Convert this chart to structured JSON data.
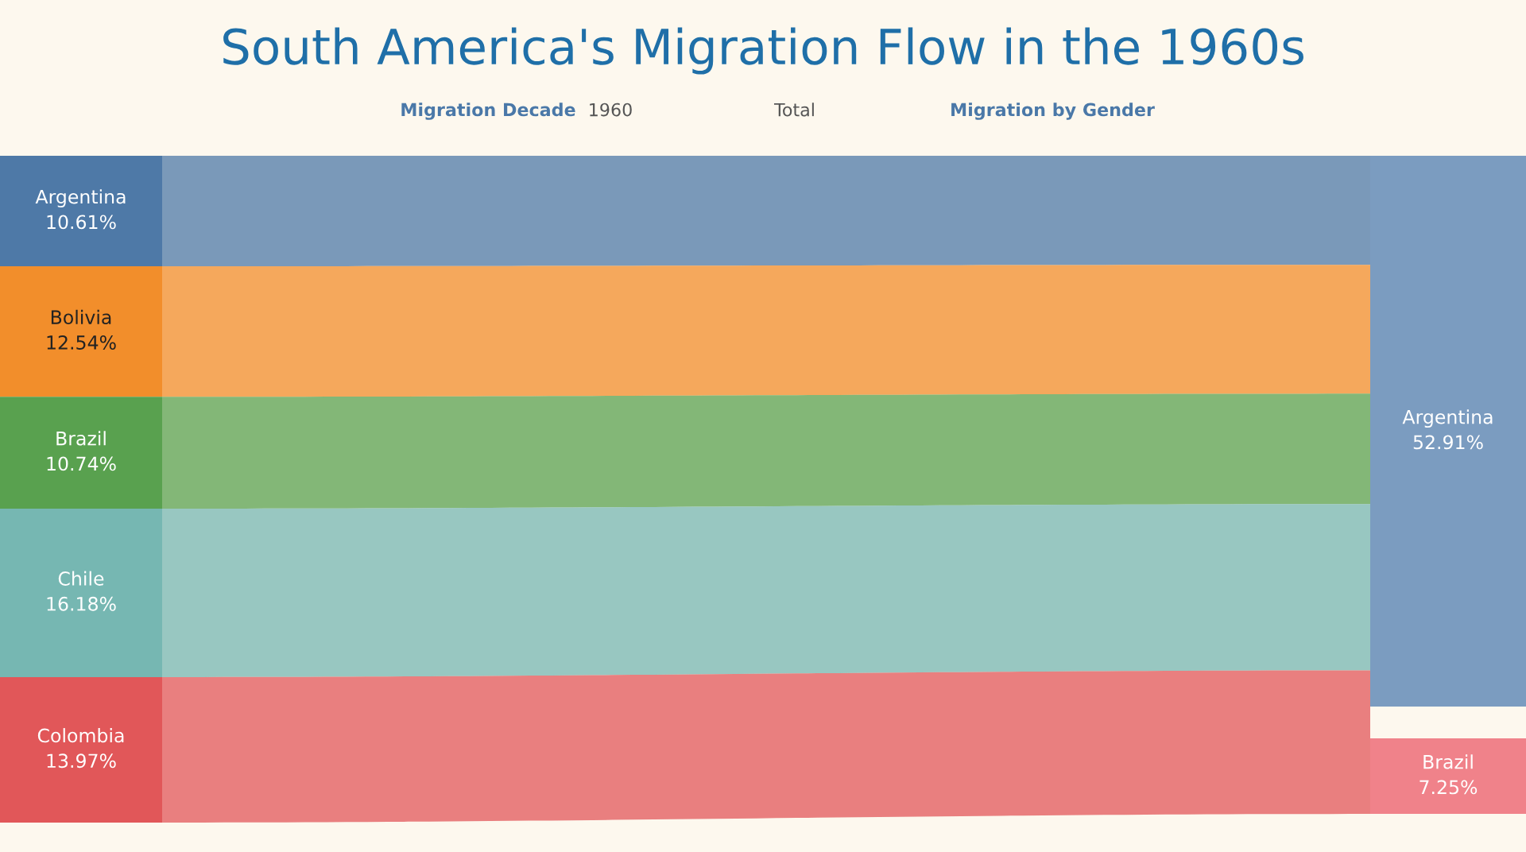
{
  "chart_data": [
    {
      "type": "other",
      "title": "South America's Migration Flow in the 1960s",
      "annotations": [
        "Migration Decade",
        "1960",
        "Total",
        "Migration by Gender"
      ],
      "categories": [
        "Argentina",
        "Bolivia",
        "Brazil",
        "Chile",
        "Colombia"
      ],
      "values": [
        10.61,
        12.54,
        10.74,
        16.18,
        13.97
      ],
      "value_labels": [
        "10.61%",
        "12.54%",
        "10.74%",
        "16.18%",
        "13.97%"
      ],
      "colors": [
        "#4e79a7",
        "#f28e2b",
        "#59a14f",
        "#76b7b2",
        "#e15759"
      ]
    },
    {
      "type": "other",
      "categories": [
        "Argentina",
        "Brazil"
      ],
      "values": [
        52.91,
        7.25
      ],
      "value_labels": [
        "52.91%",
        "7.25%"
      ],
      "colors": [
        "#7b9cc0",
        "#f0828a"
      ]
    }
  ]
}
